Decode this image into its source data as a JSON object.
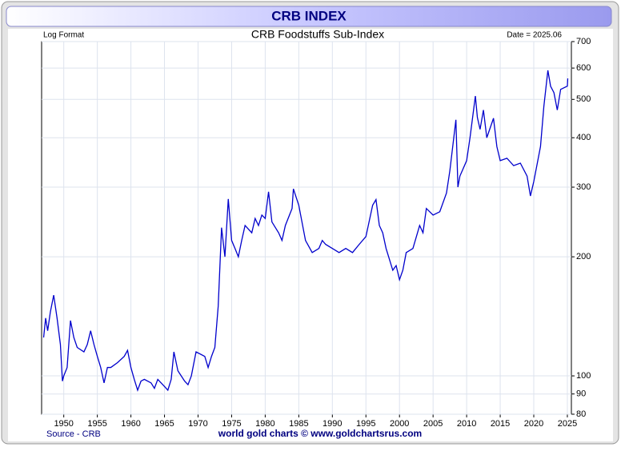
{
  "chart_data": {
    "type": "line",
    "header": "CRB INDEX",
    "title": "CRB Foodstuffs Sub-Index",
    "scale_note": "Log Format",
    "date_note": "Date = 2025.06",
    "source": "Source - CRB",
    "footer": "world gold charts © www.goldchartsrus.com",
    "log_scale": true,
    "grid": true,
    "xlim": [
      1946.7,
      2025.6
    ],
    "xticks": [
      1950,
      1955,
      1960,
      1965,
      1970,
      1975,
      1980,
      1985,
      1990,
      1995,
      2000,
      2005,
      2010,
      2015,
      2020,
      2025
    ],
    "ylim": [
      80,
      700
    ],
    "yticks": [
      80,
      90,
      100,
      200,
      300,
      400,
      500,
      600,
      700
    ],
    "x": [
      1947.0,
      1947.3,
      1947.6,
      1948.0,
      1948.5,
      1949.0,
      1949.5,
      1949.8,
      1950.0,
      1950.5,
      1951.0,
      1951.5,
      1952.0,
      1953.0,
      1953.5,
      1954.0,
      1954.5,
      1955.0,
      1955.5,
      1956.0,
      1956.5,
      1957.0,
      1958.0,
      1959.0,
      1959.5,
      1960.0,
      1960.5,
      1961.0,
      1961.5,
      1962.0,
      1963.0,
      1963.5,
      1964.0,
      1965.0,
      1965.5,
      1966.0,
      1966.4,
      1967.0,
      1968.0,
      1968.5,
      1969.0,
      1969.7,
      1971.0,
      1971.5,
      1972.0,
      1972.5,
      1973.0,
      1973.5,
      1974.0,
      1974.5,
      1975.0,
      1975.5,
      1976.0,
      1976.5,
      1977.0,
      1978.0,
      1978.5,
      1979.0,
      1979.5,
      1980.0,
      1980.5,
      1981.0,
      1982.0,
      1982.5,
      1983.0,
      1984.0,
      1984.2,
      1985.0,
      1986.0,
      1987.0,
      1988.0,
      1988.5,
      1989.0,
      1990.0,
      1991.0,
      1992.0,
      1993.0,
      1994.0,
      1995.0,
      1996.0,
      1996.5,
      1997.0,
      1997.5,
      1998.0,
      1999.0,
      1999.5,
      2000.0,
      2000.5,
      2001.0,
      2002.0,
      2003.0,
      2003.5,
      2004.0,
      2005.0,
      2006.0,
      2007.0,
      2007.5,
      2008.4,
      2008.7,
      2009.0,
      2010.0,
      2010.5,
      2011.3,
      2011.6,
      2012.0,
      2012.5,
      2013.0,
      2014.0,
      2014.5,
      2015.0,
      2016.0,
      2017.0,
      2018.0,
      2019.0,
      2019.5,
      2020.0,
      2021.0,
      2021.5,
      2022.1,
      2022.5,
      2023.0,
      2023.5,
      2024.0,
      2025.0,
      2025.06
    ],
    "series": [
      {
        "name": "CRB Foodstuffs",
        "color": "#0000cc",
        "values": [
          125,
          140,
          130,
          145,
          160,
          140,
          120,
          97,
          100,
          105,
          138,
          125,
          118,
          115,
          120,
          130,
          120,
          112,
          105,
          96,
          105,
          105,
          108,
          112,
          116,
          105,
          98,
          92,
          97,
          98,
          96,
          93,
          98,
          94,
          92,
          98,
          115,
          103,
          97,
          95,
          100,
          115,
          112,
          105,
          112,
          118,
          150,
          237,
          200,
          280,
          220,
          210,
          200,
          220,
          240,
          230,
          250,
          240,
          255,
          250,
          292,
          245,
          230,
          220,
          240,
          265,
          297,
          270,
          220,
          205,
          210,
          220,
          215,
          210,
          205,
          210,
          205,
          215,
          225,
          270,
          279,
          240,
          230,
          210,
          185,
          190,
          175,
          185,
          205,
          210,
          240,
          230,
          265,
          255,
          260,
          290,
          330,
          444,
          300,
          320,
          350,
          400,
          510,
          450,
          420,
          470,
          400,
          448,
          380,
          350,
          355,
          340,
          345,
          320,
          285,
          310,
          380,
          480,
          592,
          540,
          520,
          470,
          530,
          540,
          565
        ]
      }
    ]
  }
}
